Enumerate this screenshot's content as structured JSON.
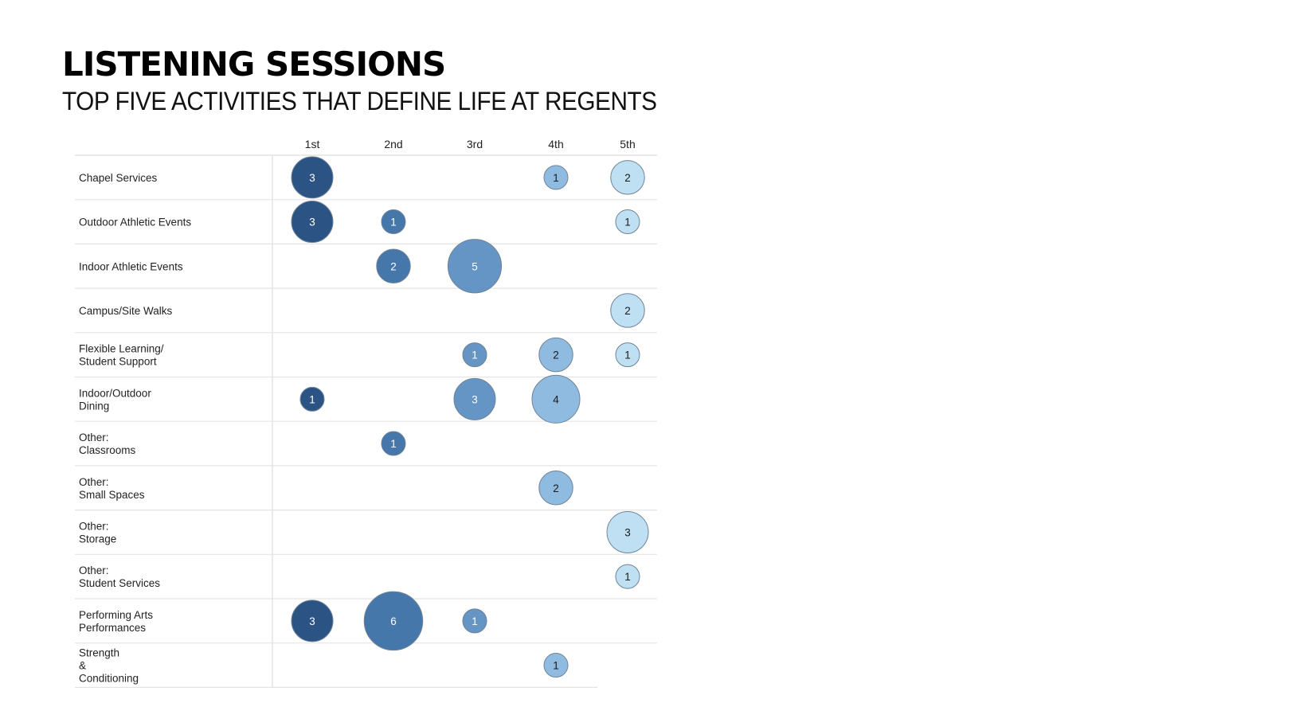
{
  "title": "LISTENING SESSIONS",
  "subtitle": "TOP FIVE ACTIVITIES THAT DEFINE LIFE AT REGENTS",
  "colors": {
    "rank_1": "#2b5485",
    "rank_2": "#4677ab",
    "rank_3": "#6495c4",
    "rank_4": "#90bbe1",
    "rank_5": "#bfdff2",
    "bubble_stroke": "#6f8397",
    "grid_line": "#e4e4e4",
    "label_text": "#222222"
  },
  "chart_data": {
    "type": "bubble-matrix",
    "columns": [
      "1st",
      "2nd",
      "3rd",
      "4th",
      "5th"
    ],
    "rows": [
      {
        "label": [
          "Chapel Services"
        ],
        "values": [
          3,
          null,
          null,
          1,
          2
        ]
      },
      {
        "label": [
          "Outdoor Athletic Events"
        ],
        "values": [
          3,
          1,
          null,
          null,
          1
        ]
      },
      {
        "label": [
          "Indoor Athletic Events"
        ],
        "values": [
          null,
          2,
          5,
          null,
          null
        ]
      },
      {
        "label": [
          "Campus/Site Walks"
        ],
        "values": [
          null,
          null,
          null,
          null,
          2
        ]
      },
      {
        "label": [
          "Flexible Learning/",
          "Student Support"
        ],
        "values": [
          null,
          null,
          1,
          2,
          1
        ]
      },
      {
        "label": [
          "Indoor/Outdoor",
          "Dining"
        ],
        "values": [
          1,
          null,
          3,
          4,
          null
        ]
      },
      {
        "label": [
          "Other:",
          "Classrooms"
        ],
        "values": [
          null,
          1,
          null,
          null,
          null
        ]
      },
      {
        "label": [
          "Other:",
          "Small Spaces"
        ],
        "values": [
          null,
          null,
          null,
          2,
          null
        ]
      },
      {
        "label": [
          "Other:",
          "Storage"
        ],
        "values": [
          null,
          null,
          null,
          null,
          3
        ]
      },
      {
        "label": [
          "Other:",
          "Student Services"
        ],
        "values": [
          null,
          null,
          null,
          null,
          1
        ]
      },
      {
        "label": [
          "Performing Arts",
          "Performances"
        ],
        "values": [
          3,
          6,
          1,
          null,
          null
        ]
      },
      {
        "label": [
          "Strength",
          "&",
          "Conditioning"
        ],
        "values": [
          null,
          null,
          null,
          1,
          null
        ]
      }
    ],
    "size_encoding": "area proportional to value",
    "color_encoding": "by rank column"
  }
}
